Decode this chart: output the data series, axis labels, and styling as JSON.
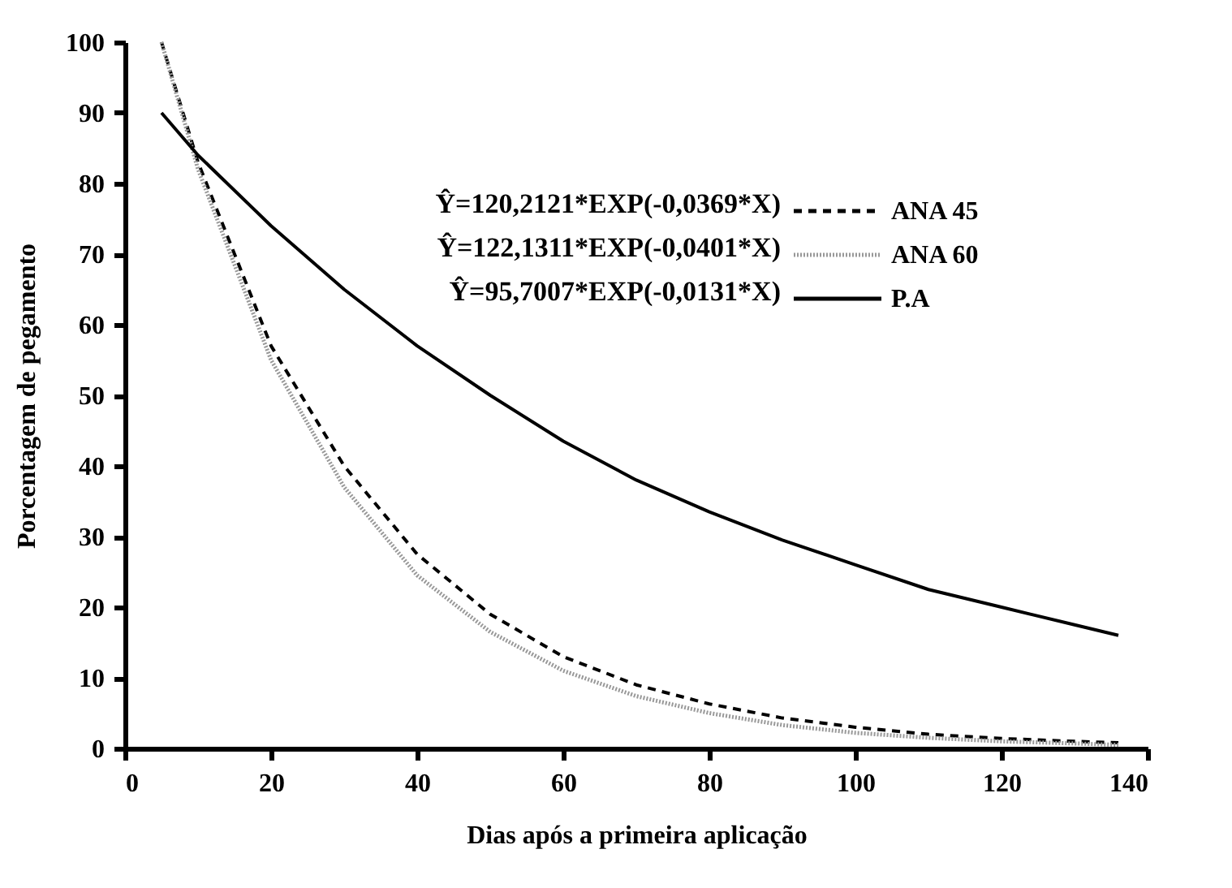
{
  "chart_data": {
    "type": "line",
    "xlabel": "Dias após a primeira aplicação",
    "ylabel": "Porcentagem de pegamento",
    "x": [
      5,
      10,
      20,
      30,
      40,
      50,
      60,
      70,
      80,
      90,
      100,
      110,
      120,
      130,
      136
    ],
    "series": [
      {
        "name": "ANA 45",
        "color": "#000000",
        "line_style": "dashed",
        "values": [
          100,
          83,
          57,
          40,
          27.5,
          19,
          13,
          9,
          6.3,
          4.3,
          3,
          2,
          1.4,
          1,
          0.8
        ]
      },
      {
        "name": "ANA 60",
        "color": "#999999",
        "line_style": "dotted",
        "values": [
          100,
          82,
          55,
          37,
          24.5,
          16.5,
          11,
          7.4,
          5,
          3.3,
          2.2,
          1.5,
          1,
          0.7,
          0.5
        ]
      },
      {
        "name": "P.A",
        "color": "#000000",
        "line_style": "solid",
        "values": [
          90,
          84,
          74,
          65,
          57,
          50,
          43.5,
          38,
          33.5,
          29.5,
          26,
          22.5,
          20,
          17.5,
          16
        ]
      }
    ],
    "annotations": [
      "Ŷ=120,2121*EXP(-0,0369*X)",
      "Ŷ=122,1311*EXP(-0,0401*X)",
      "Ŷ=95,7007*EXP(-0,0131*X)"
    ],
    "xlim": [
      0,
      140
    ],
    "xticks": [
      0,
      20,
      40,
      60,
      80,
      100,
      120,
      140
    ],
    "ylim": [
      0,
      100
    ],
    "yticks": [
      0,
      10,
      20,
      30,
      40,
      50,
      60,
      70,
      80,
      90,
      100
    ],
    "grid": false,
    "legend": "top right"
  }
}
